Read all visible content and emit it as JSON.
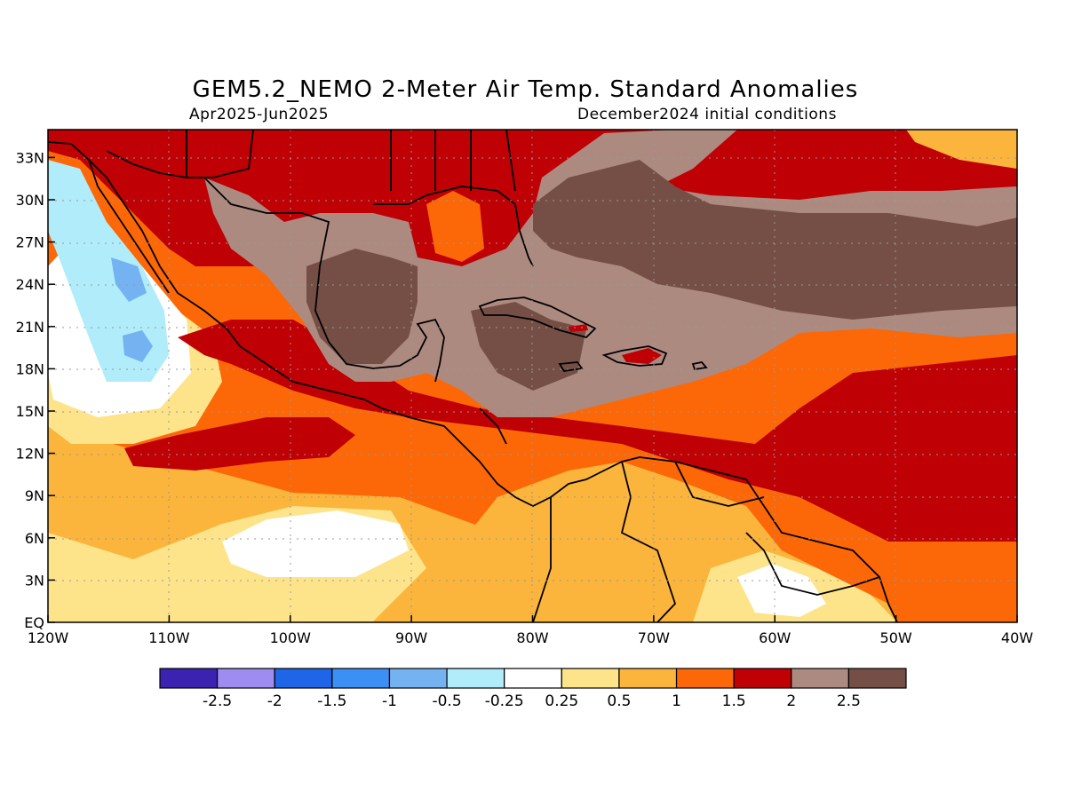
{
  "title": "GEM5.2_NEMO 2-Meter Air Temp. Standard Anomalies",
  "period": "Apr2025-Jun2025",
  "init": "December2024 initial conditions",
  "lon_ticks": [
    "120W",
    "110W",
    "100W",
    "90W",
    "80W",
    "70W",
    "60W",
    "50W",
    "40W"
  ],
  "lat_ticks": [
    "EQ",
    "3N",
    "6N",
    "9N",
    "12N",
    "15N",
    "18N",
    "21N",
    "24N",
    "27N",
    "30N",
    "33N"
  ],
  "colorbar": {
    "colors": [
      "#3b22b0",
      "#9f8cf0",
      "#1f65e8",
      "#3c90f5",
      "#74b2f2",
      "#b0ecfa",
      "#ffffff",
      "#fde48a",
      "#fbb43c",
      "#fc6707",
      "#bf0005",
      "#ad8a80",
      "#754f45"
    ],
    "labels": [
      "-2.5",
      "-2",
      "-1.5",
      "-1",
      "-0.5",
      "-0.25",
      "0.25",
      "0.5",
      "1",
      "1.5",
      "2",
      "2.5"
    ]
  },
  "regions": [
    {
      "name": "strong-positive-anomaly-gulf-caribbean",
      "level": "above 2.5"
    },
    {
      "name": "negative-anomaly-baja-offshore",
      "level": "-0.25 to -1"
    },
    {
      "name": "near-zero-eastern-pacific",
      "level": "-0.25 to 0.25"
    }
  ]
}
